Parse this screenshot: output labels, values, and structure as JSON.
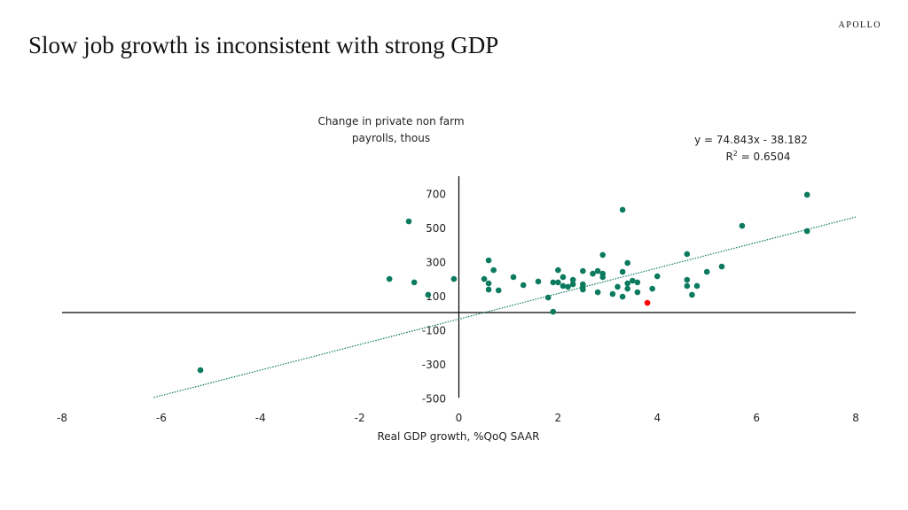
{
  "header": {
    "title": "Slow job growth is inconsistent with strong GDP",
    "logo": "APOLLO"
  },
  "chart_data": {
    "type": "scatter",
    "ylabel_lines": [
      "Change in private non farm",
      "payrolls, thous"
    ],
    "xlabel": "Real GDP growth, %QoQ SAAR",
    "xlim": [
      -8,
      8
    ],
    "ylim": [
      -500,
      800
    ],
    "xticks": [
      -8,
      -6,
      -4,
      -2,
      0,
      2,
      4,
      6,
      8
    ],
    "yticks": [
      700,
      500,
      300,
      100,
      -100,
      -300,
      -500
    ],
    "grid": false,
    "trendline": {
      "slope": 74.843,
      "intercept": -38.182,
      "equation": "y = 74.843x - 38.182",
      "r2_label": "R",
      "r2_sup": "2",
      "r2_value": " = 0.6504",
      "style": "dotted"
    },
    "colors": {
      "points": "#0b7a5f",
      "highlight": "#ff0000",
      "trend": "#0b7a5f"
    },
    "points": [
      [
        -5.21,
        -338
      ],
      [
        -1.01,
        535
      ],
      [
        -1.4,
        197
      ],
      [
        -0.9,
        177
      ],
      [
        -0.62,
        104
      ],
      [
        -0.1,
        197
      ],
      [
        0.6,
        306
      ],
      [
        0.7,
        249
      ],
      [
        0.51,
        197
      ],
      [
        0.6,
        171
      ],
      [
        0.6,
        135
      ],
      [
        0.8,
        130
      ],
      [
        1.1,
        208
      ],
      [
        1.3,
        161
      ],
      [
        1.6,
        182
      ],
      [
        1.8,
        88
      ],
      [
        3.3,
        603
      ],
      [
        1.9,
        5
      ],
      [
        1.9,
        177
      ],
      [
        2.0,
        177
      ],
      [
        2.0,
        249
      ],
      [
        2.1,
        208
      ],
      [
        2.1,
        156
      ],
      [
        2.2,
        151
      ],
      [
        2.3,
        192
      ],
      [
        2.3,
        166
      ],
      [
        2.5,
        244
      ],
      [
        2.5,
        166
      ],
      [
        2.5,
        151
      ],
      [
        2.5,
        135
      ],
      [
        2.7,
        228
      ],
      [
        2.8,
        244
      ],
      [
        2.8,
        119
      ],
      [
        2.9,
        338
      ],
      [
        2.9,
        228
      ],
      [
        2.9,
        208
      ],
      [
        3.1,
        109
      ],
      [
        3.2,
        151
      ],
      [
        3.3,
        239
      ],
      [
        3.3,
        93
      ],
      [
        3.4,
        291
      ],
      [
        3.4,
        171
      ],
      [
        3.4,
        140
      ],
      [
        3.5,
        187
      ],
      [
        3.6,
        177
      ],
      [
        3.6,
        119
      ],
      [
        3.9,
        140
      ],
      [
        4.0,
        213
      ],
      [
        4.6,
        343
      ],
      [
        4.6,
        192
      ],
      [
        4.6,
        156
      ],
      [
        4.7,
        104
      ],
      [
        4.8,
        156
      ],
      [
        5.0,
        239
      ],
      [
        5.3,
        270
      ],
      [
        5.71,
        509
      ],
      [
        7.02,
        691
      ],
      [
        7.02,
        478
      ]
    ],
    "highlight_points": [
      [
        3.8,
        57
      ]
    ]
  }
}
